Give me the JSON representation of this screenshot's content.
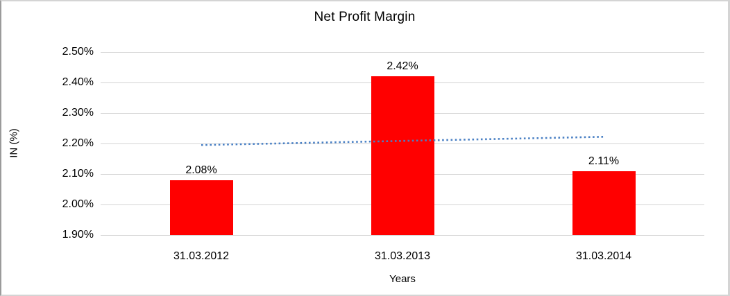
{
  "chart": {
    "title": "Net Profit Margin",
    "y_axis_title": "IN (%)",
    "x_axis_title": "Years"
  },
  "chart_data": {
    "type": "bar",
    "title": "Net Profit Margin",
    "xlabel": "Years",
    "ylabel": "IN (%)",
    "categories": [
      "31.03.2012",
      "31.03.2013",
      "31.03.2014"
    ],
    "values": [
      2.08,
      2.42,
      2.11
    ],
    "data_labels": [
      "2.08%",
      "2.42%",
      "2.11%"
    ],
    "y_ticks": [
      "2.50%",
      "2.40%",
      "2.30%",
      "2.20%",
      "2.10%",
      "2.00%",
      "1.90%"
    ],
    "y_tick_values": [
      2.5,
      2.4,
      2.3,
      2.2,
      2.1,
      2.0,
      1.9
    ],
    "ylim": [
      1.9,
      2.5
    ],
    "grid": "horizontal",
    "gridline_color": "#d3d3d3",
    "bar_color": "#ff0000",
    "label_color": "#000000",
    "legend": "none",
    "trendline": {
      "style": "dotted",
      "color": "#4a80c4",
      "start_value": 2.195,
      "end_value": 2.222
    }
  }
}
